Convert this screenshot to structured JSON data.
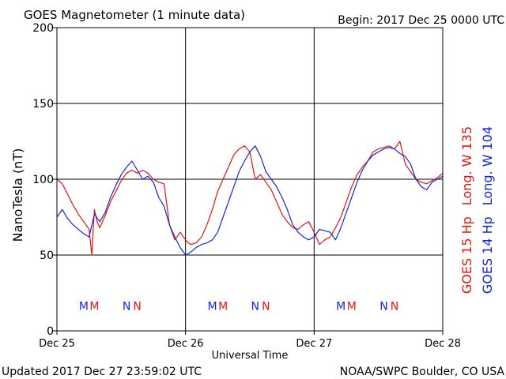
{
  "header": {
    "title": "GOES Magnetometer (1 minute data)",
    "begin_label": "Begin:  2017 Dec 25 0000 UTC"
  },
  "footer": {
    "updated": "Updated 2017 Dec 27 23:59:02 UTC",
    "credit": "NOAA/SWPC Boulder, CO USA"
  },
  "chart_data": {
    "type": "line",
    "title": "GOES Magnetometer (1 minute data)",
    "xlabel": "Universal Time",
    "ylabel": "NanoTesla (nT)",
    "x_unit": "hours since begin",
    "xlim": [
      0,
      72
    ],
    "ylim": [
      0,
      200
    ],
    "y_ticks": [
      "200",
      "150",
      "100",
      "50",
      "0"
    ],
    "y_tick_values": [
      200,
      150,
      100,
      50,
      0
    ],
    "x_ticks": [
      "Dec 25",
      "Dec 26",
      "Dec 27",
      "Dec 28"
    ],
    "x_tick_values": [
      0,
      24,
      48,
      72
    ],
    "grid": true,
    "legend_position": "right (vertical, outside plot)",
    "series": [
      {
        "name": "GOES 15 Hp",
        "legend_text": "GOES 15 Hp",
        "longitude_text": "Long. W 135",
        "color": "#e8140c",
        "x": [
          0,
          1,
          2,
          3,
          4,
          5,
          6,
          6.5,
          7,
          7.5,
          8,
          9,
          10,
          11,
          12,
          13,
          14,
          15,
          16,
          17,
          18,
          19,
          20,
          21,
          22,
          23,
          24,
          24.5,
          25,
          26,
          27,
          28,
          29,
          30,
          31,
          32,
          33,
          34,
          35,
          36,
          37,
          38,
          39,
          40,
          41,
          42,
          43,
          44,
          45,
          46,
          47,
          48,
          49,
          50,
          51,
          52,
          53,
          54,
          55,
          56,
          57,
          58,
          59,
          60,
          61,
          62,
          63,
          64,
          65,
          66,
          67,
          68,
          69,
          70,
          71,
          72
        ],
        "y": [
          100,
          97,
          90,
          83,
          77,
          72,
          67,
          50,
          80,
          72,
          68,
          76,
          85,
          92,
          99,
          104,
          106,
          104,
          106,
          104,
          100,
          98,
          97,
          70,
          60,
          65,
          60,
          58,
          57,
          58,
          62,
          70,
          80,
          92,
          100,
          108,
          116,
          120,
          122,
          118,
          100,
          103,
          98,
          93,
          85,
          77,
          72,
          68,
          67,
          70,
          72,
          65,
          57,
          60,
          62,
          68,
          75,
          85,
          95,
          103,
          108,
          112,
          118,
          120,
          121,
          122,
          120,
          125,
          110,
          105,
          100,
          98,
          97,
          99,
          101,
          104
        ]
      },
      {
        "name": "GOES 14 Hp",
        "legend_text": "GOES 14 Hp",
        "longitude_text": "Long. W 104",
        "color": "#1426d8",
        "x": [
          0,
          1,
          2,
          3,
          4,
          5,
          6,
          7,
          8,
          9,
          10,
          11,
          12,
          13,
          14,
          15,
          16,
          17,
          18,
          19,
          20,
          21,
          22,
          23,
          24,
          25,
          26,
          27,
          28,
          29,
          30,
          31,
          32,
          33,
          34,
          35,
          36,
          37,
          38,
          39,
          40,
          41,
          42,
          43,
          44,
          45,
          46,
          47,
          48,
          49,
          50,
          51,
          52,
          53,
          54,
          55,
          56,
          57,
          58,
          59,
          60,
          61,
          62,
          63,
          64,
          65,
          66,
          67,
          68,
          69,
          70,
          71,
          72
        ],
        "y": [
          75,
          80,
          74,
          70,
          67,
          64,
          62,
          77,
          72,
          78,
          88,
          96,
          103,
          108,
          112,
          106,
          100,
          102,
          98,
          88,
          82,
          70,
          62,
          55,
          50,
          52,
          55,
          57,
          58,
          60,
          65,
          75,
          85,
          95,
          105,
          112,
          118,
          122,
          115,
          105,
          100,
          95,
          88,
          80,
          70,
          65,
          62,
          60,
          62,
          67,
          66,
          65,
          60,
          68,
          78,
          88,
          98,
          106,
          112,
          116,
          118,
          120,
          121,
          120,
          117,
          115,
          110,
          100,
          95,
          93,
          98,
          100,
          102
        ]
      }
    ],
    "markers": [
      {
        "label": "M",
        "color": "#1426d8",
        "x": 5
      },
      {
        "label": "M",
        "color": "#e8140c",
        "x": 7
      },
      {
        "label": "N",
        "color": "#1426d8",
        "x": 13
      },
      {
        "label": "N",
        "color": "#e8140c",
        "x": 15
      },
      {
        "label": "M",
        "color": "#1426d8",
        "x": 29
      },
      {
        "label": "M",
        "color": "#e8140c",
        "x": 31
      },
      {
        "label": "N",
        "color": "#1426d8",
        "x": 37
      },
      {
        "label": "N",
        "color": "#e8140c",
        "x": 39
      },
      {
        "label": "M",
        "color": "#1426d8",
        "x": 53
      },
      {
        "label": "M",
        "color": "#e8140c",
        "x": 55
      },
      {
        "label": "N",
        "color": "#1426d8",
        "x": 61
      },
      {
        "label": "N",
        "color": "#e8140c",
        "x": 63
      }
    ],
    "marker_level": 17
  }
}
